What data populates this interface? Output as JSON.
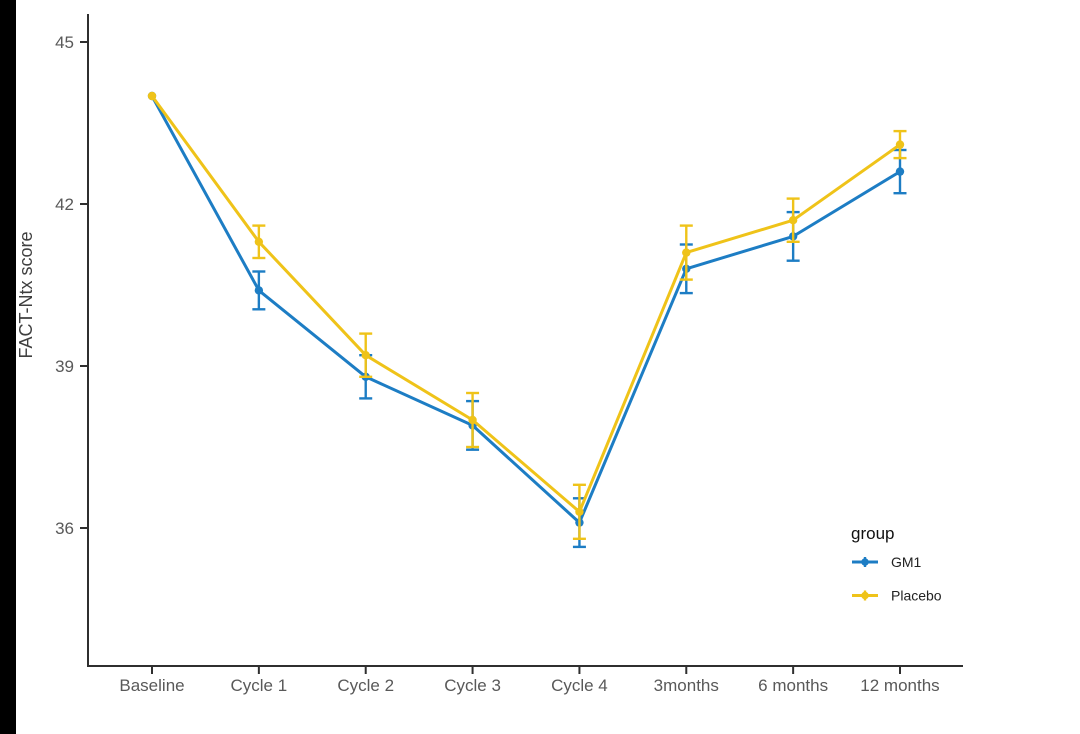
{
  "chart_data": {
    "type": "line",
    "title": "",
    "xlabel": "",
    "ylabel": "FACT-Ntx score",
    "categories": [
      "Baseline",
      "Cycle 1",
      "Cycle 2",
      "Cycle 3",
      "Cycle 4",
      "3months",
      "6 months",
      "12 months"
    ],
    "y_ticks": [
      36,
      39,
      42,
      45
    ],
    "ylim": [
      33.4,
      45.5
    ],
    "grid": false,
    "legend": {
      "title": "group",
      "position": "inside-right",
      "entries": [
        "GM1",
        "Placebo"
      ]
    },
    "series": [
      {
        "name": "GM1",
        "color": "#1d7dc4",
        "values": [
          44.0,
          40.4,
          38.8,
          37.9,
          36.1,
          40.8,
          41.4,
          42.6
        ],
        "errors": [
          0,
          0.35,
          0.4,
          0.45,
          0.45,
          0.45,
          0.45,
          0.4
        ]
      },
      {
        "name": "Placebo",
        "color": "#efc319",
        "values": [
          44.0,
          41.3,
          39.2,
          38.0,
          36.3,
          41.1,
          41.7,
          43.1
        ],
        "errors": [
          0,
          0.3,
          0.4,
          0.5,
          0.5,
          0.5,
          0.4,
          0.25
        ]
      }
    ]
  },
  "style": {
    "background": "#ffffff",
    "edge_bar_color": "#000000",
    "axis_color": "#2f2f2f",
    "tick_label_color": "#595959",
    "axis_title_color": "#3f3f3f",
    "legend_title_color": "#111111",
    "legend_label_color": "#222222"
  }
}
